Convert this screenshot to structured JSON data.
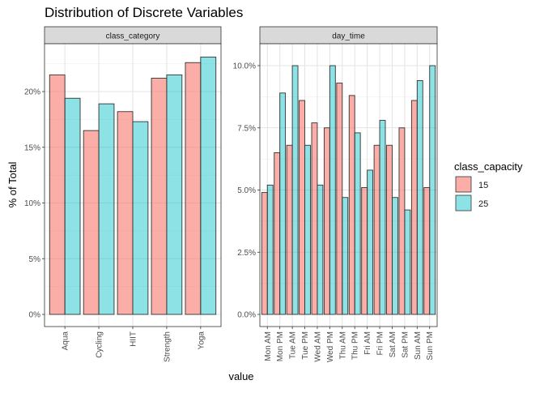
{
  "title": "Distribution of Discrete Variables",
  "colors": {
    "s15": "#F8766D",
    "s25": "#00BFC4",
    "strip": "#D9D9D9"
  },
  "chart_data": {
    "type": "bar",
    "title": "Distribution of Discrete Variables",
    "xlabel": "value",
    "ylabel": "% of Total",
    "legend": {
      "title": "class_capacity",
      "position": "right",
      "entries": [
        "15",
        "25"
      ]
    },
    "grid": true,
    "panels": [
      {
        "strip": "class_category",
        "categories": [
          "Aqua",
          "Cycling",
          "HIIT",
          "Strength",
          "Yoga"
        ],
        "ylim": [
          0,
          0.24
        ],
        "yticks": [
          0,
          0.05,
          0.1,
          0.15,
          0.2
        ],
        "ytick_labels": [
          "0%",
          "5%",
          "10%",
          "15%",
          "20%"
        ],
        "series": [
          {
            "name": "15",
            "values": [
              0.215,
              0.165,
              0.182,
              0.212,
              0.226
            ]
          },
          {
            "name": "25",
            "values": [
              0.194,
              0.189,
              0.173,
              0.215,
              0.231
            ]
          }
        ]
      },
      {
        "strip": "day_time",
        "categories": [
          "Mon AM",
          "Mon PM",
          "Tue AM",
          "Tue PM",
          "Wed AM",
          "Wed PM",
          "Thu AM",
          "Thu PM",
          "Fri AM",
          "Fri PM",
          "Sat AM",
          "Sat PM",
          "Sun AM",
          "Sun PM"
        ],
        "ylim": [
          0,
          0.1075
        ],
        "yticks": [
          0,
          0.025,
          0.05,
          0.075,
          0.1
        ],
        "ytick_labels": [
          "0.0%",
          "2.5%",
          "5.0%",
          "7.5%",
          "10.0%"
        ],
        "series": [
          {
            "name": "15",
            "values": [
              0.049,
              0.065,
              0.068,
              0.086,
              0.077,
              0.075,
              0.093,
              0.088,
              0.051,
              0.068,
              0.068,
              0.075,
              0.086,
              0.051
            ]
          },
          {
            "name": "25",
            "values": [
              0.052,
              0.089,
              0.1,
              0.068,
              0.052,
              0.1,
              0.047,
              0.073,
              0.058,
              0.078,
              0.047,
              0.042,
              0.094,
              0.1
            ]
          }
        ]
      }
    ]
  }
}
